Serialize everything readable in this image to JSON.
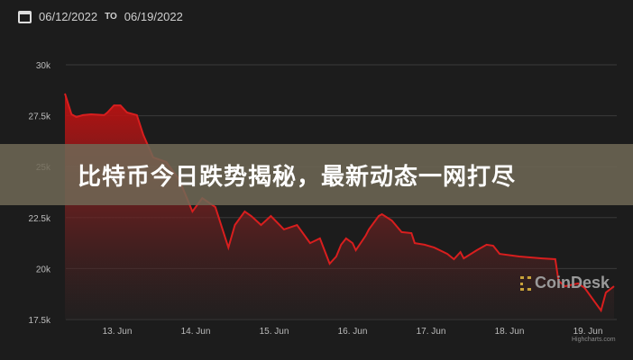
{
  "header": {
    "start_date": "06/12/2022",
    "to_label": "TO",
    "end_date": "06/19/2022",
    "icon": "calendar-icon"
  },
  "banner": {
    "title": "比特币今日跌势揭秘，最新动态一网打尽"
  },
  "watermark": "CoinDesk",
  "credits": "Highcharts.com",
  "chart_data": {
    "type": "area",
    "title": "",
    "xlabel": "",
    "ylabel": "",
    "ylim": [
      17500,
      30000
    ],
    "yticks": [
      30000,
      27500,
      25000,
      22500,
      20000,
      17500
    ],
    "ytick_labels": [
      "30k",
      "27.5k",
      "25k",
      "22.5k",
      "20k",
      "17.5k"
    ],
    "xtick_labels": [
      "13. Jun",
      "14. Jun",
      "15. Jun",
      "16. Jun",
      "17. Jun",
      "18. Jun",
      "19. Jun"
    ],
    "xticks": [
      "2022-06-13T00:00",
      "2022-06-14T00:00",
      "2022-06-15T00:00",
      "2022-06-16T00:00",
      "2022-06-17T00:00",
      "2022-06-18T00:00",
      "2022-06-19T00:00"
    ],
    "grid": true,
    "line_color": "#d81e1e",
    "series": [
      {
        "x": [
          "2022-06-12T08:00",
          "2022-06-12T10:00",
          "2022-06-12T11:30",
          "2022-06-12T13:30",
          "2022-06-12T16:00",
          "2022-06-12T20:00",
          "2022-06-12T21:00",
          "2022-06-12T23:00",
          "2022-06-13T01:00",
          "2022-06-13T03:00",
          "2022-06-13T06:00",
          "2022-06-13T08:00",
          "2022-06-13T11:00",
          "2022-06-13T15:00",
          "2022-06-13T19:00",
          "2022-06-13T23:00",
          "2022-06-14T02:00",
          "2022-06-14T06:00",
          "2022-06-14T10:00",
          "2022-06-14T12:00",
          "2022-06-14T15:00",
          "2022-06-14T17:00",
          "2022-06-14T20:00",
          "2022-06-14T23:00",
          "2022-06-15T03:00",
          "2022-06-15T07:00",
          "2022-06-15T11:00",
          "2022-06-15T14:00",
          "2022-06-15T17:00",
          "2022-06-15T19:00",
          "2022-06-15T20:30",
          "2022-06-15T22:00",
          "2022-06-16T00:00",
          "2022-06-16T01:00",
          "2022-06-16T04:00",
          "2022-06-16T05:00",
          "2022-06-16T08:00",
          "2022-06-16T09:00",
          "2022-06-16T12:00",
          "2022-06-16T15:00",
          "2022-06-16T18:00",
          "2022-06-16T19:00",
          "2022-06-16T22:00",
          "2022-06-17T01:00",
          "2022-06-17T05:00",
          "2022-06-17T07:00",
          "2022-06-17T09:00",
          "2022-06-17T10:00",
          "2022-06-17T14:00",
          "2022-06-17T17:00",
          "2022-06-17T19:00",
          "2022-06-17T21:00",
          "2022-06-18T03:00",
          "2022-06-18T10:00",
          "2022-06-18T14:00",
          "2022-06-18T15:00",
          "2022-06-18T17:00",
          "2022-06-18T21:00",
          "2022-06-18T23:00",
          "2022-06-19T02:00",
          "2022-06-19T04:00",
          "2022-06-19T05:30",
          "2022-06-19T08:00"
        ],
        "y": [
          28590,
          27570,
          27440,
          27530,
          27570,
          27530,
          27660,
          28010,
          28010,
          27660,
          27530,
          26555,
          25450,
          25230,
          24350,
          22800,
          23460,
          23020,
          21030,
          22140,
          22800,
          22580,
          22140,
          22580,
          21920,
          22140,
          21250,
          21480,
          20240,
          20590,
          21170,
          21480,
          21250,
          20900,
          21610,
          21920,
          22580,
          22670,
          22360,
          21790,
          21740,
          21250,
          21170,
          21030,
          20720,
          20460,
          20810,
          20500,
          20900,
          21170,
          21120,
          20720,
          20590,
          20500,
          20460,
          19400,
          19130,
          19270,
          19050,
          18380,
          17940,
          18820,
          19130
        ]
      }
    ]
  }
}
